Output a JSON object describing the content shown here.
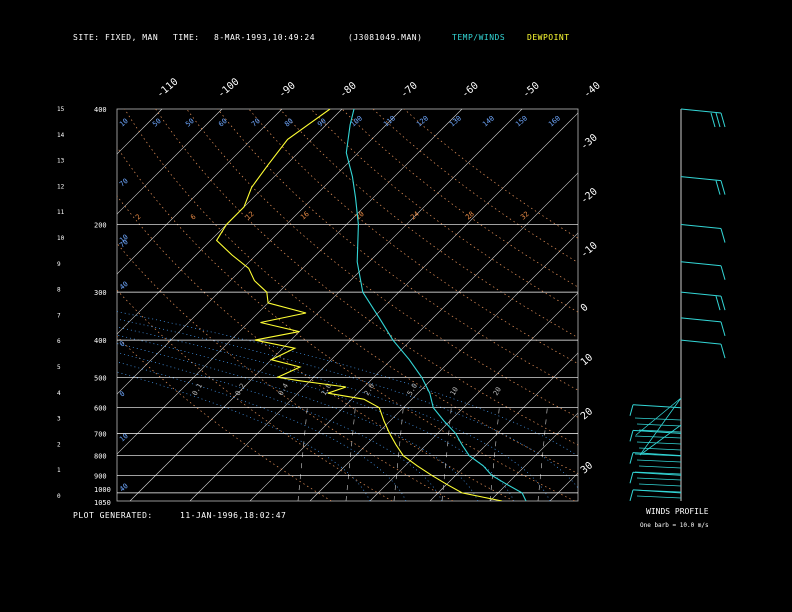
{
  "header": {
    "site_label": "SITE:",
    "site_value": "FIXED, MAN",
    "time_label": "TIME:",
    "time_value": "8-MAR-1993,10:49:24",
    "file_value": "(J3081049.MAN)",
    "legend_temp": "TEMP/WINDS",
    "legend_dew": "DEWPOINT"
  },
  "footer": {
    "generated_label": "PLOT GENERATED:",
    "generated_value": "11-JAN-1996,18:02:47"
  },
  "winds_panel": {
    "title": "WINDS PROFILE",
    "note": "One barb = 10.0 m/s"
  },
  "colors": {
    "temp": "#33d6d6",
    "dewpoint": "#ffff33",
    "isotherm": "#dddddd",
    "dry_adiabat": "#e8935a",
    "moist_adiabat": "#4aa3ff",
    "mixing_ratio": "#d0d0d0",
    "isobar": "#ffffff",
    "label_blue": "#6fa8ff",
    "label_orange": "#e88a45"
  },
  "chart_data": {
    "type": "line",
    "subtype": "skew-t sounding",
    "pressure_levels": [
      "400",
      "200",
      "300",
      "400",
      "500",
      "600",
      "700",
      "800",
      "900",
      "1000",
      "1050"
    ],
    "isobar_labels": [
      {
        "p": 400,
        "label": "400"
      },
      {
        "p": 200,
        "label": "200"
      },
      {
        "p": 300,
        "label": "300"
      },
      {
        "p": 400,
        "label": "400"
      },
      {
        "p": 500,
        "label": "500"
      },
      {
        "p": 600,
        "label": "600"
      },
      {
        "p": 700,
        "label": "700"
      },
      {
        "p": 800,
        "label": "800"
      },
      {
        "p": 900,
        "label": "900"
      },
      {
        "p": 1000,
        "label": "1000"
      },
      {
        "p": 1050,
        "label": "1050"
      }
    ],
    "height_km_labels": [
      "0",
      "1",
      "2",
      "3",
      "4",
      "5",
      "6",
      "7",
      "8",
      "9",
      "10",
      "11",
      "12",
      "13",
      "14",
      "15"
    ],
    "top_temp_labels": [
      "-110",
      "-100",
      "-90",
      "-80",
      "-70",
      "-60",
      "-50",
      "-40"
    ],
    "right_temp_labels": [
      "-30",
      "-20",
      "-10",
      "0",
      "10",
      "20",
      "30"
    ],
    "dry_adiabat_labels": [
      "2",
      "6",
      "12",
      "16",
      "20",
      "24",
      "28",
      "32"
    ],
    "moist_adiabat_top_labels": [
      "10",
      "50",
      "50",
      "60",
      "70",
      "80",
      "90",
      "100",
      "110",
      "120",
      "130",
      "140",
      "150",
      "160"
    ],
    "mixing_ratio_labels": [
      "0.1",
      "0.2",
      "0.4",
      "1.0",
      "2.0",
      "5.0",
      "10",
      "20"
    ],
    "left_curve_labels": [
      "70",
      "10",
      "40",
      "0",
      "0",
      "10",
      "40",
      "70"
    ],
    "series": [
      {
        "name": "TEMP/WINDS",
        "color": "#33d6d6",
        "points_p_t": [
          [
            1050,
            16
          ],
          [
            1000,
            14
          ],
          [
            950,
            10
          ],
          [
            900,
            6
          ],
          [
            850,
            3
          ],
          [
            800,
            -1
          ],
          [
            750,
            -4
          ],
          [
            700,
            -7
          ],
          [
            650,
            -11
          ],
          [
            600,
            -15
          ],
          [
            550,
            -18
          ],
          [
            500,
            -22
          ],
          [
            450,
            -27
          ],
          [
            400,
            -33
          ],
          [
            350,
            -39
          ],
          [
            300,
            -46
          ],
          [
            250,
            -52
          ],
          [
            200,
            -58
          ],
          [
            170,
            -63
          ],
          [
            150,
            -67
          ],
          [
            130,
            -72
          ],
          [
            110,
            -76
          ],
          [
            100,
            -78
          ]
        ]
      },
      {
        "name": "DEWPOINT",
        "color": "#ffff33",
        "points_p_t": [
          [
            1050,
            12
          ],
          [
            1000,
            4
          ],
          [
            950,
            0
          ],
          [
            900,
            -4
          ],
          [
            850,
            -8
          ],
          [
            800,
            -12
          ],
          [
            750,
            -15
          ],
          [
            700,
            -18
          ],
          [
            650,
            -21
          ],
          [
            600,
            -24
          ],
          [
            570,
            -28
          ],
          [
            550,
            -35
          ],
          [
            530,
            -33
          ],
          [
            510,
            -42
          ],
          [
            500,
            -46
          ],
          [
            470,
            -44
          ],
          [
            450,
            -50
          ],
          [
            420,
            -48
          ],
          [
            400,
            -56
          ],
          [
            380,
            -50
          ],
          [
            360,
            -58
          ],
          [
            340,
            -52
          ],
          [
            320,
            -60
          ],
          [
            300,
            -62
          ],
          [
            280,
            -66
          ],
          [
            260,
            -69
          ],
          [
            240,
            -74
          ],
          [
            220,
            -79
          ],
          [
            200,
            -80
          ],
          [
            180,
            -80
          ],
          [
            160,
            -82
          ],
          [
            140,
            -83
          ],
          [
            120,
            -84
          ],
          [
            100,
            -82
          ]
        ]
      }
    ],
    "winds": [
      {
        "p": 100,
        "speed_barbs": 3
      },
      {
        "p": 150,
        "speed_barbs": 2
      },
      {
        "p": 200,
        "speed_barbs": 1
      },
      {
        "p": 250,
        "speed_barbs": 1
      },
      {
        "p": 300,
        "speed_barbs": 2
      },
      {
        "p": 350,
        "speed_barbs": 1
      },
      {
        "p": 400,
        "speed_barbs": 1
      },
      {
        "p": 600,
        "speed_barbs": 1
      },
      {
        "p": 700,
        "speed_barbs": 1
      },
      {
        "p": 800,
        "speed_barbs": 1
      },
      {
        "p": 900,
        "speed_barbs": 1
      },
      {
        "p": 1000,
        "speed_barbs": 1
      }
    ]
  }
}
